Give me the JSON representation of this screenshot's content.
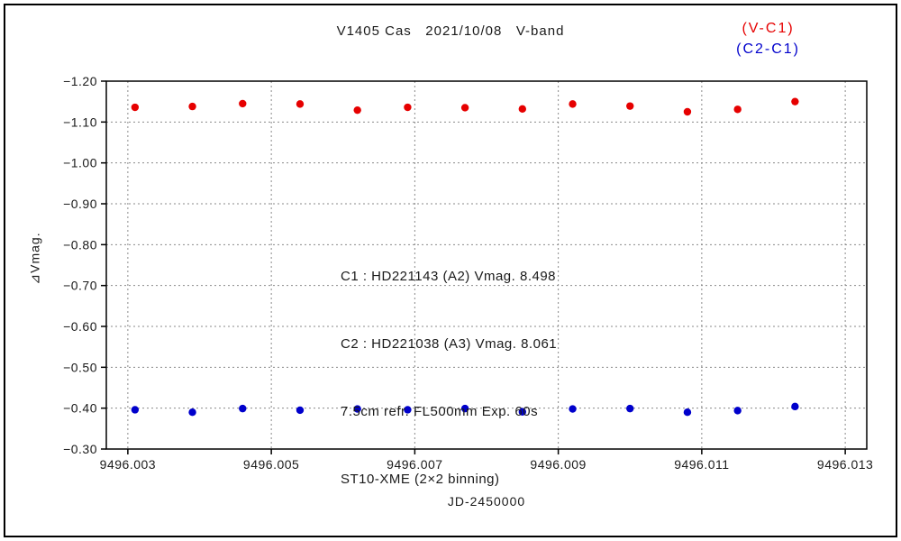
{
  "title": "V1405 Cas   2021/10/08   V-band",
  "legend": [
    {
      "label": "(V-C1)",
      "color": "#e60000"
    },
    {
      "label": "(C2-C1)",
      "color": "#0000cc"
    }
  ],
  "ylabel": "⊿Vmag.",
  "xlabel": "JD-2450000",
  "annotation": {
    "line1": "C1 : HD221143 (A2) Vmag. 8.498",
    "line2": "C2 : HD221038 (A3) Vmag. 8.061",
    "line3": "7.5cm refr. FL500mm Exp. 60s",
    "line4": "ST10-XME (2×2 binning)"
  },
  "chart_data": {
    "type": "scatter",
    "title": "V1405 Cas 2021/10/08 V-band",
    "xlabel": "JD-2450000",
    "ylabel": "⊿Vmag.",
    "x": [
      9496.0031,
      9496.0039,
      9496.0046,
      9496.0054,
      9496.0062,
      9496.0069,
      9496.0077,
      9496.0085,
      9496.0092,
      9496.01,
      9496.0108,
      9496.0115,
      9496.0123
    ],
    "series": [
      {
        "name": "(V-C1)",
        "color": "#e60000",
        "values": [
          -1.136,
          -1.138,
          -1.145,
          -1.144,
          -1.129,
          -1.136,
          -1.135,
          -1.132,
          -1.144,
          -1.139,
          -1.125,
          -1.131,
          -1.15
        ]
      },
      {
        "name": "(C2-C1)",
        "color": "#0000cc",
        "values": [
          -0.396,
          -0.39,
          -0.399,
          -0.395,
          -0.398,
          -0.396,
          -0.399,
          -0.391,
          -0.398,
          -0.399,
          -0.39,
          -0.394,
          -0.404
        ]
      }
    ],
    "x_ticks": [
      9496.003,
      9496.005,
      9496.007,
      9496.009,
      9496.011,
      9496.013
    ],
    "y_ticks": [
      -1.2,
      -1.1,
      -1.0,
      -0.9,
      -0.8,
      -0.7,
      -0.6,
      -0.5,
      -0.4,
      -0.3
    ],
    "xlim": [
      9496.0027,
      9496.0133
    ],
    "ylim": [
      -1.2,
      -0.3
    ],
    "y_inverted": true,
    "grid": "dotted",
    "legend_position": "top-right",
    "marker_radius": 4.2
  }
}
